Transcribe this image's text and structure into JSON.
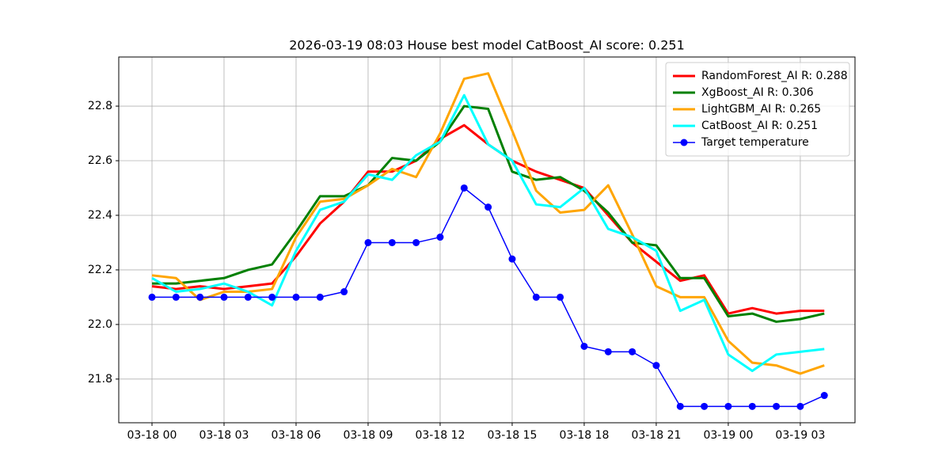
{
  "chart_data": {
    "type": "line",
    "title": "2026-03-19 08:03 House best model CatBoost_AI score: 0.251",
    "x": [
      "03-18 00",
      "03-18 01",
      "03-18 02",
      "03-18 03",
      "03-18 04",
      "03-18 05",
      "03-18 06",
      "03-18 07",
      "03-18 08",
      "03-18 09",
      "03-18 10",
      "03-18 11",
      "03-18 12",
      "03-18 13",
      "03-18 14",
      "03-18 15",
      "03-18 16",
      "03-18 17",
      "03-18 18",
      "03-18 19",
      "03-18 20",
      "03-18 21",
      "03-18 22",
      "03-18 23",
      "03-19 00",
      "03-19 01",
      "03-19 02",
      "03-19 03",
      "03-19 04"
    ],
    "xticks": [
      "03-18 00",
      "03-18 03",
      "03-18 06",
      "03-18 09",
      "03-18 12",
      "03-18 15",
      "03-18 18",
      "03-18 21",
      "03-19 00",
      "03-19 03"
    ],
    "ylim": [
      21.64,
      22.98
    ],
    "yticks": [
      21.8,
      {
        "value": 22,
        "label": "22.0"
      },
      22.2,
      22.4,
      22.6,
      22.8
    ],
    "grid": true,
    "legend": "upper right",
    "series": [
      {
        "name": "RandomForest_AI R: 0.288",
        "color": "#ff0000",
        "linewidth": 3,
        "values": [
          22.14,
          22.13,
          22.14,
          22.13,
          22.14,
          22.15,
          22.25,
          22.37,
          22.45,
          22.56,
          22.56,
          22.6,
          22.68,
          22.73,
          22.66,
          22.6,
          22.56,
          22.53,
          22.5,
          22.4,
          22.3,
          22.23,
          22.16,
          22.18,
          22.04,
          22.06,
          22.04,
          22.05,
          22.05
        ]
      },
      {
        "name": "XgBoost_AI R: 0.306",
        "color": "#008000",
        "linewidth": 3,
        "values": [
          22.15,
          22.15,
          22.16,
          22.17,
          22.2,
          22.22,
          22.34,
          22.47,
          22.47,
          22.51,
          22.61,
          22.6,
          22.67,
          22.8,
          22.79,
          22.56,
          22.53,
          22.54,
          22.49,
          22.41,
          22.3,
          22.29,
          22.17,
          22.17,
          22.03,
          22.04,
          22.01,
          22.02,
          22.04
        ]
      },
      {
        "name": "LightGBM_AI R: 0.265",
        "color": "#ffa500",
        "linewidth": 3,
        "values": [
          22.18,
          22.17,
          22.09,
          22.12,
          22.12,
          22.13,
          22.32,
          22.45,
          22.46,
          22.51,
          22.57,
          22.54,
          22.7,
          22.9,
          22.92,
          22.71,
          22.49,
          22.41,
          22.42,
          22.51,
          22.33,
          22.14,
          22.1,
          22.1,
          21.94,
          21.86,
          21.85,
          21.82,
          21.85
        ]
      },
      {
        "name": "CatBoost_AI R: 0.251",
        "color": "#00ffff",
        "linewidth": 3,
        "values": [
          22.17,
          22.12,
          22.13,
          22.15,
          22.12,
          22.07,
          22.27,
          22.42,
          22.45,
          22.55,
          22.53,
          22.62,
          22.67,
          22.84,
          22.66,
          22.6,
          22.44,
          22.43,
          22.5,
          22.35,
          22.32,
          22.27,
          22.05,
          22.09,
          21.89,
          21.83,
          21.89,
          21.9,
          21.91
        ]
      },
      {
        "name": "Target temperature",
        "color": "#0000ff",
        "linewidth": 1.5,
        "marker": "o",
        "values": [
          22.1,
          22.1,
          22.1,
          22.1,
          22.1,
          22.1,
          22.1,
          22.1,
          22.12,
          22.3,
          22.3,
          22.3,
          22.32,
          22.5,
          22.43,
          22.24,
          22.1,
          22.1,
          21.92,
          21.9,
          21.9,
          21.85,
          21.7,
          21.7,
          21.7,
          21.7,
          21.7,
          21.7,
          21.74
        ]
      }
    ]
  }
}
